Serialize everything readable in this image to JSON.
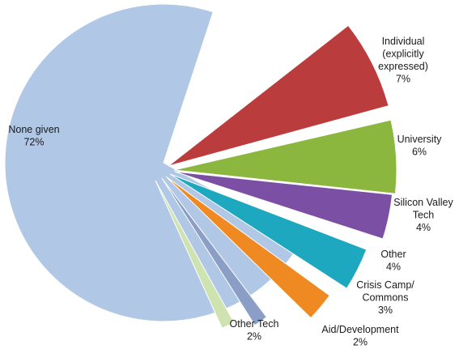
{
  "chart_data": {
    "type": "pie",
    "title": "",
    "slices": [
      {
        "name": "None given",
        "value": 72,
        "value_label": "72%",
        "label_lines": [
          "None given",
          "72%"
        ],
        "color": "#b0c7e6"
      },
      {
        "name": "Individual (explicitly expressed)",
        "value": 7,
        "value_label": "7%",
        "label_lines": [
          "Individual",
          "(explicitly",
          "expressed)",
          "7%"
        ],
        "color": "#bb3c3c"
      },
      {
        "name": "University",
        "value": 6,
        "value_label": "6%",
        "label_lines": [
          "University",
          "6%"
        ],
        "color": "#8bb73f"
      },
      {
        "name": "Silicon Valley Tech",
        "value": 4,
        "value_label": "4%",
        "label_lines": [
          "Silicon Valley",
          "Tech",
          "4%"
        ],
        "color": "#7b4fa3"
      },
      {
        "name": "Other",
        "value": 4,
        "value_label": "4%",
        "label_lines": [
          "Other",
          "4%"
        ],
        "color": "#1ea8bf"
      },
      {
        "name": "Crisis Camp/ Commons",
        "value": 3,
        "value_label": "3%",
        "label_lines": [
          "Crisis Camp/",
          "Commons",
          "3%"
        ],
        "color": "#ef8a22"
      },
      {
        "name": "Aid/Development",
        "value": 2,
        "value_label": "2%",
        "label_lines": [
          "Aid/Development",
          "2%"
        ],
        "color": "#8b9fc6"
      },
      {
        "name": "Other Tech",
        "value": 2,
        "value_label": "2%",
        "label_lines": [
          "Other Tech",
          "2%"
        ],
        "color": "#cfe3b0"
      }
    ]
  }
}
